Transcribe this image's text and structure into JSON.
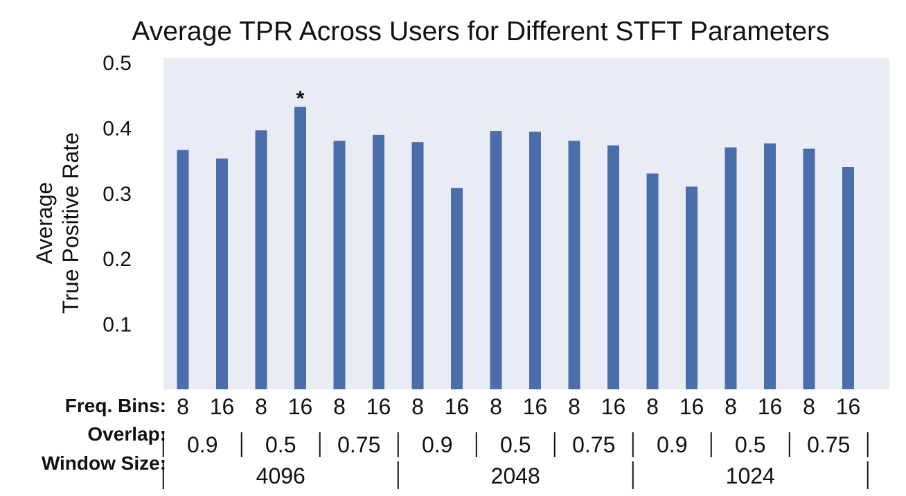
{
  "chart_data": {
    "type": "bar",
    "title": "Average TPR Across Users for Different STFT Parameters",
    "ylabel_lines": [
      "Average",
      "True Positive Rate"
    ],
    "xlabel": "",
    "ylim": [
      0,
      0.5
    ],
    "yticks": [
      "0.1",
      "0.2",
      "0.3",
      "0.4",
      "0.5"
    ],
    "bar_color": "#4a6ea9",
    "plot_background": "#e9ecf5",
    "row_labels": {
      "freq_bins": "Freq. Bins:",
      "overlap": "Overlap:",
      "window_size": "Window Size:"
    },
    "categories": [
      "8",
      "16",
      "8",
      "16",
      "8",
      "16",
      "8",
      "16",
      "8",
      "16",
      "8",
      "16",
      "8",
      "16",
      "8",
      "16",
      "8",
      "16"
    ],
    "values": [
      0.366,
      0.353,
      0.396,
      0.432,
      0.38,
      0.389,
      0.378,
      0.308,
      0.395,
      0.394,
      0.38,
      0.373,
      0.33,
      0.31,
      0.37,
      0.376,
      0.368,
      0.34
    ],
    "overlap_groups": [
      "0.9",
      "0.5",
      "0.75",
      "0.9",
      "0.5",
      "0.75",
      "0.9",
      "0.5",
      "0.75"
    ],
    "window_groups": [
      "4096",
      "2048",
      "1024"
    ],
    "annotation": {
      "text": "*",
      "bar_index": 3
    }
  }
}
